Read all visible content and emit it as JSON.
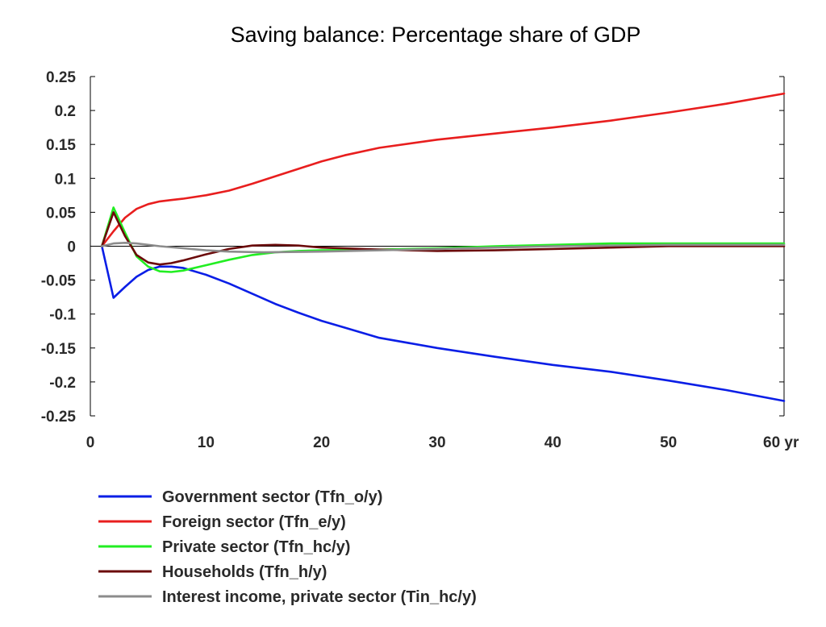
{
  "chart_data": {
    "type": "line",
    "title": "Saving balance: Percentage share of GDP",
    "xlabel": "",
    "ylabel": "",
    "x_unit_label": "yr",
    "xlim": [
      0,
      60
    ],
    "ylim": [
      -0.25,
      0.25
    ],
    "x_ticks": [
      0,
      10,
      20,
      30,
      40,
      50,
      60
    ],
    "x_tick_labels": [
      "0",
      "10",
      "20",
      "30",
      "40",
      "50",
      "60 yr"
    ],
    "y_ticks": [
      0.25,
      0.2,
      0.15,
      0.1,
      0.05,
      0,
      -0.05,
      -0.1,
      -0.15,
      -0.2,
      -0.25
    ],
    "y_tick_labels": [
      "0.25",
      "0.2",
      "0.15",
      "0.1",
      "0.05",
      "0",
      "-0.05",
      "-0.1",
      "-0.15",
      "-0.2",
      "-0.25"
    ],
    "grid": false,
    "zero_line": true,
    "legend_position": "bottom",
    "series": [
      {
        "name": "Government sector (Tfn_o/y)",
        "color": "#0a1ee6",
        "x": [
          1,
          2,
          3,
          4,
          5,
          6,
          7,
          8,
          10,
          12,
          14,
          16,
          18,
          20,
          22,
          25,
          30,
          35,
          40,
          45,
          50,
          55,
          60
        ],
        "y": [
          0,
          -0.076,
          -0.06,
          -0.045,
          -0.035,
          -0.03,
          -0.03,
          -0.032,
          -0.042,
          -0.055,
          -0.07,
          -0.085,
          -0.098,
          -0.11,
          -0.12,
          -0.135,
          -0.15,
          -0.163,
          -0.175,
          -0.185,
          -0.198,
          -0.212,
          -0.228
        ]
      },
      {
        "name": "Foreign sector (Tfn_e/y)",
        "color": "#e81e1e",
        "x": [
          1,
          2,
          3,
          4,
          5,
          6,
          7,
          8,
          10,
          12,
          14,
          16,
          18,
          20,
          22,
          25,
          30,
          35,
          40,
          45,
          50,
          55,
          60
        ],
        "y": [
          0,
          0.022,
          0.042,
          0.055,
          0.062,
          0.066,
          0.068,
          0.07,
          0.075,
          0.082,
          0.092,
          0.103,
          0.114,
          0.125,
          0.134,
          0.145,
          0.157,
          0.166,
          0.175,
          0.185,
          0.197,
          0.21,
          0.225
        ]
      },
      {
        "name": "Private sector (Tfn_hc/y)",
        "color": "#22ee22",
        "x": [
          1,
          2,
          3,
          4,
          5,
          6,
          7,
          8,
          10,
          12,
          14,
          16,
          18,
          20,
          25,
          30,
          35,
          40,
          45,
          50,
          55,
          60
        ],
        "y": [
          0,
          0.057,
          0.02,
          -0.015,
          -0.03,
          -0.037,
          -0.038,
          -0.036,
          -0.028,
          -0.02,
          -0.013,
          -0.009,
          -0.007,
          -0.006,
          -0.005,
          -0.003,
          0,
          0.002,
          0.004,
          0.004,
          0.004,
          0.004
        ]
      },
      {
        "name": "Households (Tfn_h/y)",
        "color": "#6b0a0a",
        "x": [
          1,
          2,
          3,
          4,
          5,
          6,
          7,
          8,
          10,
          12,
          14,
          16,
          18,
          20,
          25,
          30,
          35,
          40,
          45,
          50,
          55,
          60
        ],
        "y": [
          0,
          0.05,
          0.015,
          -0.013,
          -0.024,
          -0.027,
          -0.025,
          -0.021,
          -0.012,
          -0.004,
          0.001,
          0.002,
          0.001,
          -0.002,
          -0.005,
          -0.007,
          -0.006,
          -0.004,
          -0.002,
          0,
          0,
          0
        ]
      },
      {
        "name": "Interest income, private sector (Tin_hc/y)",
        "color": "#8c8c8c",
        "x": [
          1,
          2,
          3,
          4,
          5,
          6,
          8,
          10,
          12,
          15,
          20,
          25,
          30,
          35,
          40,
          45,
          50,
          55,
          60
        ],
        "y": [
          0,
          0.004,
          0.005,
          0.004,
          0.002,
          0,
          -0.003,
          -0.006,
          -0.008,
          -0.009,
          -0.008,
          -0.006,
          -0.004,
          -0.002,
          0,
          0.001,
          0.002,
          0.002,
          0.002
        ]
      }
    ]
  }
}
